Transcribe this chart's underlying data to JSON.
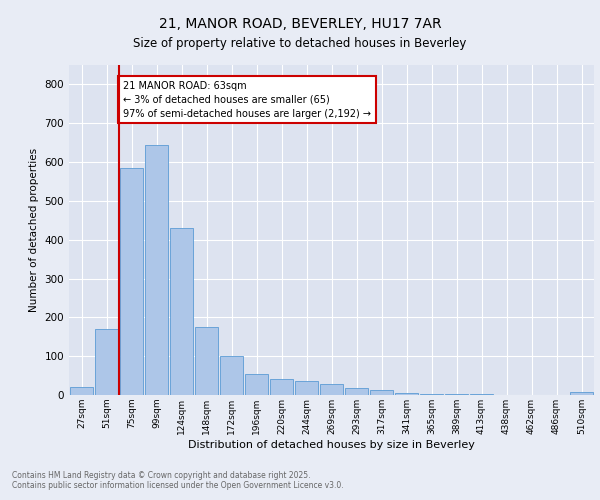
{
  "title1": "21, MANOR ROAD, BEVERLEY, HU17 7AR",
  "title2": "Size of property relative to detached houses in Beverley",
  "xlabel": "Distribution of detached houses by size in Beverley",
  "ylabel": "Number of detached properties",
  "categories": [
    "27sqm",
    "51sqm",
    "75sqm",
    "99sqm",
    "124sqm",
    "148sqm",
    "172sqm",
    "196sqm",
    "220sqm",
    "244sqm",
    "269sqm",
    "293sqm",
    "317sqm",
    "341sqm",
    "365sqm",
    "389sqm",
    "413sqm",
    "438sqm",
    "462sqm",
    "486sqm",
    "510sqm"
  ],
  "values": [
    20,
    170,
    585,
    645,
    430,
    175,
    100,
    55,
    40,
    35,
    28,
    17,
    12,
    4,
    3,
    2,
    2,
    1,
    1,
    1,
    8
  ],
  "bar_color": "#adc6e8",
  "bar_edge_color": "#5b9bd5",
  "bg_color": "#e8ecf5",
  "plot_bg_color": "#dde3f0",
  "vline_color": "#cc0000",
  "annotation_text": "21 MANOR ROAD: 63sqm\n← 3% of detached houses are smaller (65)\n97% of semi-detached houses are larger (2,192) →",
  "annotation_box_color": "#ffffff",
  "annotation_border_color": "#cc0000",
  "footnote": "Contains HM Land Registry data © Crown copyright and database right 2025.\nContains public sector information licensed under the Open Government Licence v3.0.",
  "ylim": [
    0,
    850
  ],
  "yticks": [
    0,
    100,
    200,
    300,
    400,
    500,
    600,
    700,
    800
  ]
}
